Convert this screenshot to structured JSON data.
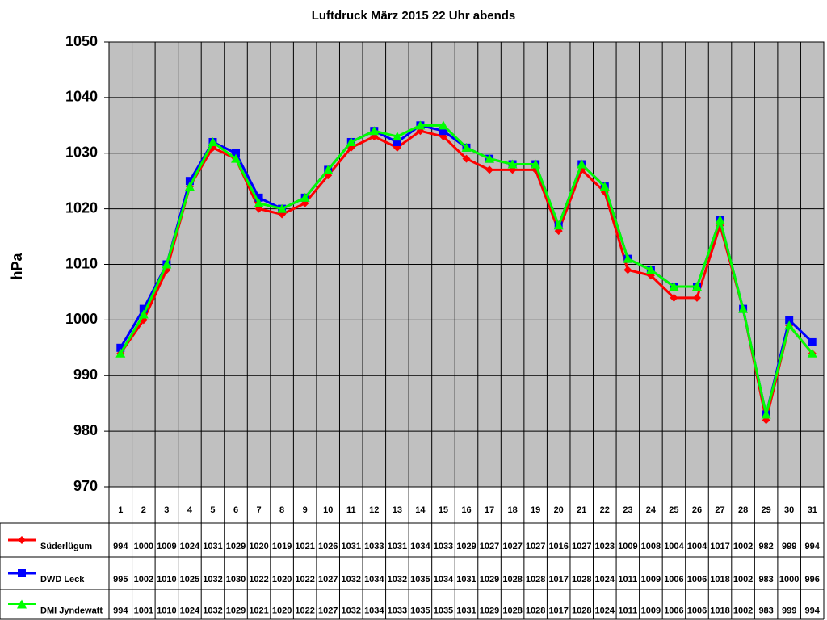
{
  "chart_data": {
    "type": "line",
    "title": "Luftdruck März 2015 22 Uhr abends",
    "y_label": "hPa",
    "categories": [
      "1",
      "2",
      "3",
      "4",
      "5",
      "6",
      "7",
      "8",
      "9",
      "10",
      "11",
      "12",
      "13",
      "14",
      "15",
      "16",
      "17",
      "18",
      "19",
      "20",
      "21",
      "22",
      "23",
      "24",
      "25",
      "26",
      "27",
      "28",
      "29",
      "30",
      "31"
    ],
    "series": [
      {
        "name": "Süderlügum",
        "color": "#ff0000",
        "marker": "diamond",
        "values": [
          994,
          1000,
          1009,
          1024,
          1031,
          1029,
          1020,
          1019,
          1021,
          1026,
          1031,
          1033,
          1031,
          1034,
          1033,
          1029,
          1027,
          1027,
          1027,
          1016,
          1027,
          1023,
          1009,
          1008,
          1004,
          1004,
          1017,
          1002,
          982,
          999,
          994
        ]
      },
      {
        "name": "DWD Leck",
        "color": "#0000ff",
        "marker": "square",
        "values": [
          995,
          1002,
          1010,
          1025,
          1032,
          1030,
          1022,
          1020,
          1022,
          1027,
          1032,
          1034,
          1032,
          1035,
          1034,
          1031,
          1029,
          1028,
          1028,
          1017,
          1028,
          1024,
          1011,
          1009,
          1006,
          1006,
          1018,
          1002,
          983,
          1000,
          996
        ]
      },
      {
        "name": "DMI Jyndewatt",
        "color": "#00ff00",
        "marker": "triangle",
        "values": [
          994,
          1001,
          1010,
          1024,
          1032,
          1029,
          1021,
          1020,
          1022,
          1027,
          1032,
          1034,
          1033,
          1035,
          1035,
          1031,
          1029,
          1028,
          1028,
          1017,
          1028,
          1024,
          1011,
          1009,
          1006,
          1006,
          1018,
          1002,
          983,
          999,
          994
        ]
      }
    ],
    "ylim": [
      970,
      1050
    ],
    "yticks": [
      970,
      980,
      990,
      1000,
      1010,
      1020,
      1030,
      1040,
      1050
    ],
    "grid": true,
    "plot_background": "#c0c0c0"
  }
}
